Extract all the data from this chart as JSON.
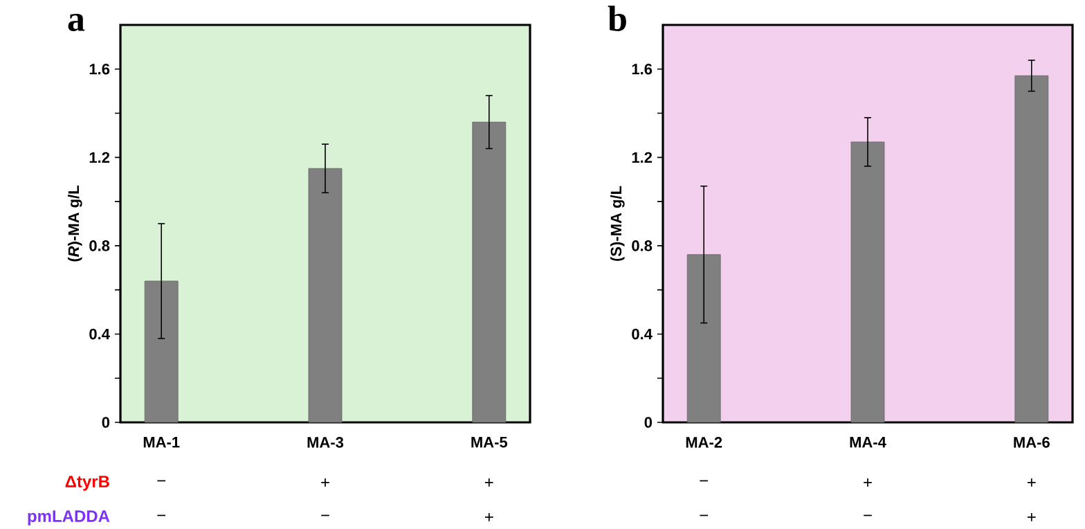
{
  "chart_data": [
    {
      "type": "bar",
      "title": "a",
      "ylabel": "(*R*)-MA g/L",
      "categories": [
        "MA-1",
        "MA-3",
        "MA-5"
      ],
      "values": [
        0.64,
        1.15,
        1.36
      ],
      "errors": [
        0.26,
        0.11,
        0.12
      ],
      "color": "#808080",
      "ylim": [
        0,
        1.8
      ],
      "yticks": [
        0,
        {
          "value": 0.2,
          "label": null
        },
        0.4,
        {
          "value": 0.6,
          "label": null
        },
        0.8,
        {
          "value": 1.0,
          "label": null
        },
        1.2,
        {
          "value": 1.4,
          "label": null
        },
        1.6
      ],
      "grid": false,
      "annotations": [
        "ΔtyrB",
        "−",
        "+",
        "+",
        "pmLADDA",
        "−",
        "−",
        "+"
      ]
    },
    {
      "type": "bar",
      "title": "b",
      "ylabel": "(S)-MA g/L",
      "categories": [
        "MA-2",
        "MA-4",
        "MA-6"
      ],
      "values": [
        0.76,
        1.27,
        1.57
      ],
      "errors": [
        0.31,
        0.11,
        0.07
      ],
      "color": "#808080",
      "ylim": [
        0,
        1.8
      ],
      "yticks": [
        0,
        {
          "value": 0.2,
          "label": null
        },
        0.4,
        {
          "value": 0.6,
          "label": null
        },
        0.8,
        {
          "value": 1.0,
          "label": null
        },
        1.2,
        {
          "value": 1.4,
          "label": null
        },
        1.6
      ],
      "grid": false,
      "annotations": [
        "−",
        "+",
        "+",
        "−",
        "−",
        "+"
      ]
    }
  ]
}
